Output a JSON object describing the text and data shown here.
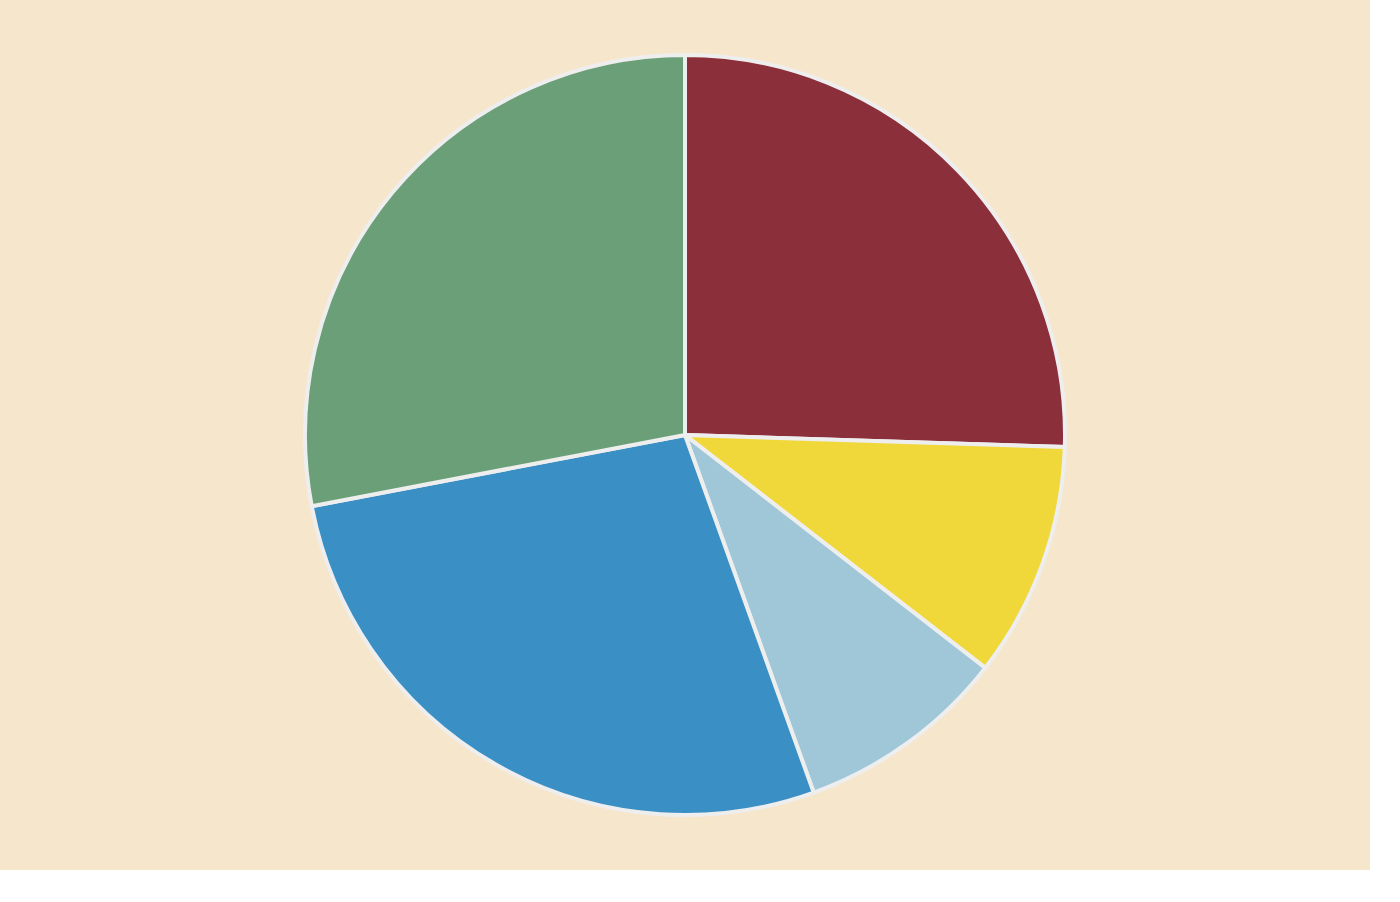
{
  "chart_data": {
    "type": "pie",
    "categories": [
      null,
      null,
      null,
      null,
      null
    ],
    "values": [
      25.5,
      10,
      9,
      27.5,
      28
    ],
    "colors": [
      "#8b2f3a",
      "#f0d83a",
      "#9fc7d8",
      "#3a8fc4",
      "#6a9f78"
    ]
  }
}
